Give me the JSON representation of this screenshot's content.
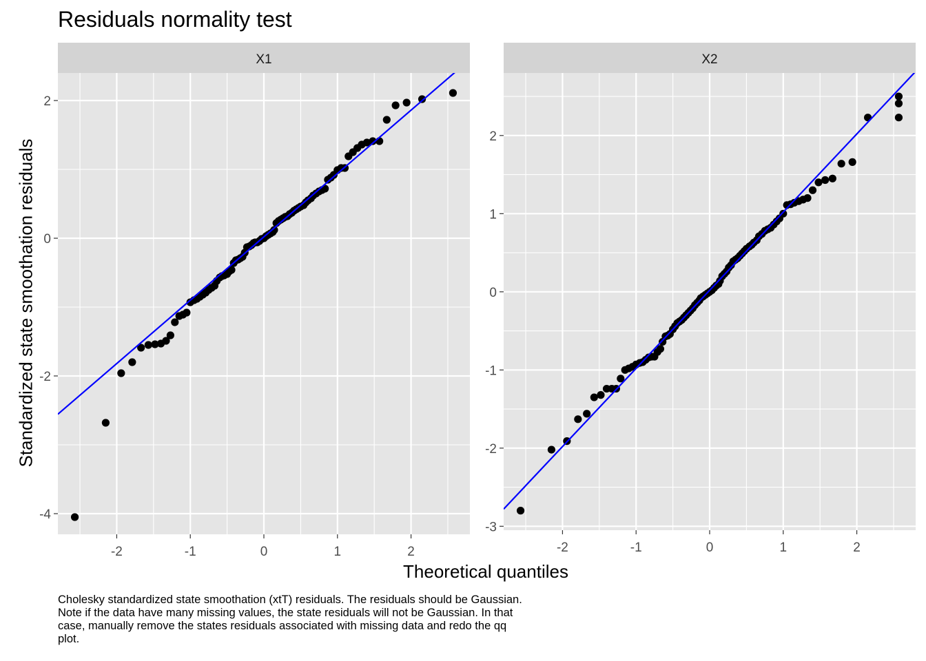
{
  "title": "Residuals normality test",
  "ylabel": "Standardized state smoothation residuals",
  "xlabel": "Theoretical quantiles",
  "caption_lines": [
    "Cholesky standardized state smoothation (xtT) residuals. The residuals should be Gaussian.",
    "Note if the data have many missing values, the state residuals will not be Gaussian. In that",
    "case, manually remove the states residuals associated with missing data and redo the qq",
    "plot."
  ],
  "colors": {
    "panel_bg": "#e5e5e5",
    "strip_bg": "#d3d3d3",
    "grid": "#ffffff",
    "point": "#000000",
    "line": "#0000ff"
  },
  "chart_data": [
    {
      "type": "scatter",
      "panel": "X1",
      "xlim": [
        -2.8,
        2.8
      ],
      "ylim": [
        -4.3,
        2.4
      ],
      "x_ticks": [
        -2,
        -1,
        0,
        1,
        2
      ],
      "x_tick_labels": [
        "-2",
        "-1",
        "0",
        "1",
        "2"
      ],
      "y_ticks": [
        2,
        0,
        -2,
        -4
      ],
      "y_tick_labels": [
        "2",
        "0",
        "-2",
        "-4"
      ],
      "reference_line": {
        "intercept": 0.02,
        "slope": 0.92
      },
      "points": [
        [
          -2.57,
          -4.05
        ],
        [
          -2.15,
          -2.68
        ],
        [
          -1.94,
          -1.96
        ],
        [
          -1.79,
          -1.8
        ],
        [
          -1.67,
          -1.59
        ],
        [
          -1.57,
          -1.55
        ],
        [
          -1.48,
          -1.54
        ],
        [
          -1.4,
          -1.53
        ],
        [
          -1.33,
          -1.49
        ],
        [
          -1.27,
          -1.41
        ],
        [
          -1.21,
          -1.22
        ],
        [
          -1.15,
          -1.13
        ],
        [
          -1.1,
          -1.11
        ],
        [
          -1.05,
          -1.08
        ],
        [
          -1.0,
          -0.93
        ],
        [
          -0.95,
          -0.9
        ],
        [
          -0.91,
          -0.88
        ],
        [
          -0.87,
          -0.85
        ],
        [
          -0.83,
          -0.82
        ],
        [
          -0.79,
          -0.79
        ],
        [
          -0.75,
          -0.75
        ],
        [
          -0.71,
          -0.72
        ],
        [
          -0.67,
          -0.69
        ],
        [
          -0.64,
          -0.62
        ],
        [
          -0.6,
          -0.57
        ],
        [
          -0.57,
          -0.55
        ],
        [
          -0.54,
          -0.54
        ],
        [
          -0.5,
          -0.52
        ],
        [
          -0.47,
          -0.48
        ],
        [
          -0.44,
          -0.46
        ],
        [
          -0.41,
          -0.36
        ],
        [
          -0.38,
          -0.32
        ],
        [
          -0.35,
          -0.31
        ],
        [
          -0.32,
          -0.29
        ],
        [
          -0.29,
          -0.27
        ],
        [
          -0.26,
          -0.21
        ],
        [
          -0.23,
          -0.13
        ],
        [
          -0.2,
          -0.12
        ],
        [
          -0.17,
          -0.1
        ],
        [
          -0.14,
          -0.07
        ],
        [
          -0.12,
          -0.06
        ],
        [
          -0.09,
          -0.06
        ],
        [
          -0.06,
          -0.04
        ],
        [
          -0.03,
          -0.01
        ],
        [
          0.0,
          0.0
        ],
        [
          0.03,
          0.03
        ],
        [
          0.06,
          0.05
        ],
        [
          0.09,
          0.07
        ],
        [
          0.12,
          0.09
        ],
        [
          0.14,
          0.12
        ],
        [
          0.17,
          0.22
        ],
        [
          0.2,
          0.25
        ],
        [
          0.23,
          0.27
        ],
        [
          0.26,
          0.29
        ],
        [
          0.29,
          0.31
        ],
        [
          0.32,
          0.32
        ],
        [
          0.35,
          0.35
        ],
        [
          0.38,
          0.37
        ],
        [
          0.41,
          0.4
        ],
        [
          0.44,
          0.42
        ],
        [
          0.47,
          0.44
        ],
        [
          0.5,
          0.46
        ],
        [
          0.54,
          0.48
        ],
        [
          0.57,
          0.52
        ],
        [
          0.6,
          0.55
        ],
        [
          0.64,
          0.58
        ],
        [
          0.67,
          0.62
        ],
        [
          0.71,
          0.65
        ],
        [
          0.75,
          0.68
        ],
        [
          0.79,
          0.7
        ],
        [
          0.83,
          0.72
        ],
        [
          0.87,
          0.85
        ],
        [
          0.91,
          0.88
        ],
        [
          0.95,
          0.92
        ],
        [
          1.0,
          0.99
        ],
        [
          1.05,
          1.02
        ],
        [
          1.1,
          1.02
        ],
        [
          1.15,
          1.19
        ],
        [
          1.21,
          1.25
        ],
        [
          1.27,
          1.31
        ],
        [
          1.33,
          1.36
        ],
        [
          1.4,
          1.39
        ],
        [
          1.48,
          1.41
        ],
        [
          1.57,
          1.41
        ],
        [
          1.67,
          1.72
        ],
        [
          1.79,
          1.93
        ],
        [
          1.94,
          1.97
        ],
        [
          2.15,
          2.02
        ],
        [
          2.57,
          2.11
        ]
      ]
    },
    {
      "type": "scatter",
      "panel": "X2",
      "xlim": [
        -2.8,
        2.8
      ],
      "ylim": [
        -3.05,
        2.8
      ],
      "x_ticks": [
        -2,
        -1,
        0,
        1,
        2
      ],
      "x_tick_labels": [
        "-2",
        "-1",
        "0",
        "1",
        "2"
      ],
      "y_ticks": [
        2,
        1,
        0,
        -1,
        -2,
        -3
      ],
      "y_tick_labels": [
        "2",
        "1",
        "0",
        "-1",
        "-2",
        "-3"
      ],
      "reference_line": {
        "intercept": 0.02,
        "slope": 1.0
      },
      "points": [
        [
          -2.57,
          -2.8
        ],
        [
          -2.15,
          -2.02
        ],
        [
          -1.94,
          -1.91
        ],
        [
          -1.79,
          -1.63
        ],
        [
          -1.67,
          -1.56
        ],
        [
          -1.57,
          -1.35
        ],
        [
          -1.48,
          -1.32
        ],
        [
          -1.4,
          -1.24
        ],
        [
          -1.33,
          -1.24
        ],
        [
          -1.27,
          -1.24
        ],
        [
          -1.21,
          -1.11
        ],
        [
          -1.15,
          -1.0
        ],
        [
          -1.1,
          -0.98
        ],
        [
          -1.05,
          -0.96
        ],
        [
          -1.0,
          -0.93
        ],
        [
          -0.95,
          -0.91
        ],
        [
          -0.91,
          -0.9
        ],
        [
          -0.87,
          -0.87
        ],
        [
          -0.83,
          -0.84
        ],
        [
          -0.79,
          -0.83
        ],
        [
          -0.75,
          -0.83
        ],
        [
          -0.71,
          -0.77
        ],
        [
          -0.67,
          -0.73
        ],
        [
          -0.64,
          -0.64
        ],
        [
          -0.6,
          -0.57
        ],
        [
          -0.57,
          -0.56
        ],
        [
          -0.54,
          -0.54
        ],
        [
          -0.5,
          -0.48
        ],
        [
          -0.47,
          -0.44
        ],
        [
          -0.44,
          -0.4
        ],
        [
          -0.41,
          -0.38
        ],
        [
          -0.38,
          -0.36
        ],
        [
          -0.35,
          -0.33
        ],
        [
          -0.32,
          -0.3
        ],
        [
          -0.29,
          -0.27
        ],
        [
          -0.26,
          -0.24
        ],
        [
          -0.23,
          -0.21
        ],
        [
          -0.2,
          -0.17
        ],
        [
          -0.17,
          -0.14
        ],
        [
          -0.14,
          -0.11
        ],
        [
          -0.12,
          -0.08
        ],
        [
          -0.09,
          -0.06
        ],
        [
          -0.06,
          -0.04
        ],
        [
          -0.03,
          -0.02
        ],
        [
          0.0,
          0.0
        ],
        [
          0.03,
          0.02
        ],
        [
          0.06,
          0.05
        ],
        [
          0.09,
          0.08
        ],
        [
          0.12,
          0.1
        ],
        [
          0.14,
          0.14
        ],
        [
          0.17,
          0.2
        ],
        [
          0.2,
          0.23
        ],
        [
          0.23,
          0.26
        ],
        [
          0.26,
          0.31
        ],
        [
          0.29,
          0.34
        ],
        [
          0.32,
          0.39
        ],
        [
          0.35,
          0.41
        ],
        [
          0.38,
          0.43
        ],
        [
          0.41,
          0.46
        ],
        [
          0.44,
          0.49
        ],
        [
          0.47,
          0.52
        ],
        [
          0.5,
          0.55
        ],
        [
          0.54,
          0.58
        ],
        [
          0.57,
          0.6
        ],
        [
          0.6,
          0.63
        ],
        [
          0.64,
          0.66
        ],
        [
          0.67,
          0.71
        ],
        [
          0.71,
          0.74
        ],
        [
          0.75,
          0.78
        ],
        [
          0.79,
          0.8
        ],
        [
          0.83,
          0.82
        ],
        [
          0.87,
          0.86
        ],
        [
          0.91,
          0.9
        ],
        [
          0.95,
          0.94
        ],
        [
          1.0,
          1.0
        ],
        [
          1.05,
          1.11
        ],
        [
          1.1,
          1.12
        ],
        [
          1.15,
          1.14
        ],
        [
          1.21,
          1.16
        ],
        [
          1.27,
          1.18
        ],
        [
          1.33,
          1.2
        ],
        [
          1.4,
          1.3
        ],
        [
          1.48,
          1.4
        ],
        [
          1.57,
          1.43
        ],
        [
          1.67,
          1.45
        ],
        [
          1.79,
          1.64
        ],
        [
          1.94,
          1.66
        ],
        [
          2.15,
          2.23
        ],
        [
          2.57,
          2.23
        ],
        [
          2.57,
          2.41
        ],
        [
          2.57,
          2.5
        ]
      ]
    }
  ]
}
